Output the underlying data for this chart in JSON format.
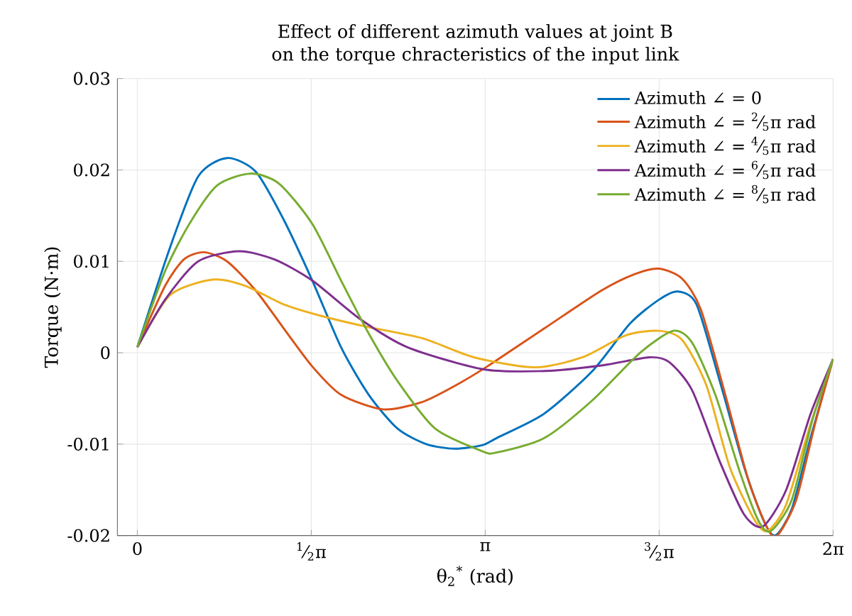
{
  "chart_data": {
    "type": "line",
    "title": "Effect of different azimuth values at joint B on the torque chracteristics of the input link",
    "xlabel": "θ$_{2}$$^{*}$ (rad)",
    "ylabel": "Torque (N·m)",
    "xlim": [
      -0.18,
      6.2832
    ],
    "ylim": [
      -0.02,
      0.03
    ],
    "xticks": [
      0,
      {
        "value": 1.5708,
        "label": "$^{1}$⁄$_{2}$π"
      },
      {
        "value": 3.1416,
        "label": "π"
      },
      {
        "value": 4.7124,
        "label": "$^{3}$⁄$_{2}$π"
      },
      {
        "value": 6.2832,
        "label": "2π"
      }
    ],
    "yticks": [
      -0.02,
      -0.01,
      0,
      0.01,
      0.02,
      0.03
    ],
    "grid": true,
    "legend": "top right",
    "line_style": "solid",
    "series": [
      {
        "name": "Azimuth ∠ = 0",
        "color": "#0072bd",
        "x": [
          0,
          0.295,
          0.55,
          0.81,
          1.07,
          1.32,
          1.58,
          1.84,
          2.09,
          2.35,
          2.61,
          2.87,
          3.12,
          3.25,
          3.67,
          4.11,
          4.45,
          4.71,
          4.88,
          5.05,
          5.26,
          5.48,
          5.65,
          5.76,
          5.91,
          6.08,
          6.2832
        ],
        "values": [
          0.0006,
          0.0115,
          0.0193,
          0.0213,
          0.0198,
          0.0146,
          0.0079,
          0.0006,
          -0.0046,
          -0.0083,
          -0.01,
          -0.0105,
          -0.0101,
          -0.0093,
          -0.0067,
          -0.002,
          0.0032,
          0.0058,
          0.0067,
          0.0053,
          -0.0031,
          -0.0125,
          -0.0182,
          -0.02,
          -0.0171,
          -0.0093,
          -0.0007
        ]
      },
      {
        "name": "Azimuth ∠ = $^{2}$⁄$_{5}$π rad",
        "color": "#d95319",
        "x": [
          0,
          0.25,
          0.42,
          0.6,
          0.81,
          1.07,
          1.32,
          1.58,
          1.84,
          2.22,
          2.57,
          2.87,
          3.16,
          3.68,
          4.19,
          4.49,
          4.71,
          4.92,
          5.09,
          5.31,
          5.52,
          5.69,
          5.78,
          5.95,
          6.12,
          6.2832
        ],
        "values": [
          0.0006,
          0.0073,
          0.0102,
          0.011,
          0.01,
          0.0068,
          0.0027,
          -0.0015,
          -0.0046,
          -0.0062,
          -0.0054,
          -0.0036,
          -0.0015,
          0.0027,
          0.0068,
          0.0086,
          0.0092,
          0.0081,
          0.0047,
          -0.0046,
          -0.014,
          -0.0192,
          -0.02,
          -0.0161,
          -0.0078,
          -0.0007
        ]
      },
      {
        "name": "Azimuth ∠ = $^{4}$⁄$_{5}$π rad",
        "color": "#edb120",
        "x": [
          0,
          0.295,
          0.68,
          0.98,
          1.32,
          1.67,
          2.05,
          2.57,
          3.04,
          3.59,
          4.02,
          4.41,
          4.71,
          4.92,
          5.14,
          5.35,
          5.57,
          5.69,
          5.86,
          6.08,
          6.2832
        ],
        "values": [
          0.0006,
          0.0063,
          0.008,
          0.0073,
          0.0053,
          0.004,
          0.0029,
          0.0016,
          -0.0005,
          -0.0016,
          -0.0005,
          0.0019,
          0.0024,
          0.0014,
          -0.0036,
          -0.0125,
          -0.0182,
          -0.0195,
          -0.0166,
          -0.0078,
          -0.0007
        ]
      },
      {
        "name": "Azimuth ∠ = $^{6}$⁄$_{5}$π rad",
        "color": "#7e2f8e",
        "x": [
          0,
          0.25,
          0.55,
          0.92,
          1.24,
          1.58,
          2.01,
          2.44,
          3.12,
          3.68,
          4.19,
          4.62,
          4.8,
          5.01,
          5.26,
          5.48,
          5.65,
          5.86,
          6.08,
          6.2832
        ],
        "values": [
          0.0006,
          0.0058,
          0.01,
          0.0111,
          0.0102,
          0.0079,
          0.0037,
          0.0006,
          -0.0018,
          -0.002,
          -0.0014,
          -0.0005,
          -0.001,
          -0.0041,
          -0.0119,
          -0.0177,
          -0.019,
          -0.015,
          -0.0067,
          -0.0007
        ]
      },
      {
        "name": "Azimuth ∠ = $^{8}$⁄$_{5}$π rad",
        "color": "#77ac30",
        "x": [
          0,
          0.25,
          0.47,
          0.72,
          1.02,
          1.28,
          1.58,
          1.84,
          2.09,
          2.35,
          2.69,
          3.12,
          3.25,
          3.68,
          4.11,
          4.54,
          4.84,
          5.01,
          5.22,
          5.44,
          5.61,
          5.72,
          5.91,
          6.1,
          6.2832
        ],
        "values": [
          0.0006,
          0.0089,
          0.0141,
          0.0183,
          0.0196,
          0.0185,
          0.0141,
          0.0079,
          0.0021,
          -0.0031,
          -0.0083,
          -0.0108,
          -0.0109,
          -0.0093,
          -0.0052,
          0.0,
          0.0024,
          0.0011,
          -0.0046,
          -0.013,
          -0.0184,
          -0.0195,
          -0.0161,
          -0.0072,
          -0.0007
        ]
      }
    ]
  }
}
